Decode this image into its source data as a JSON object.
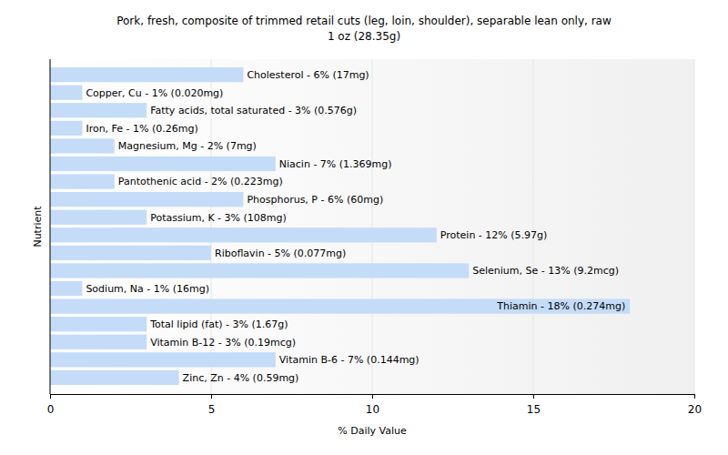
{
  "chart_data": {
    "type": "bar",
    "orientation": "horizontal",
    "title": "Pork, fresh, composite of trimmed retail cuts (leg, loin, shoulder), separable lean only, raw",
    "subtitle": "1 oz (28.35g)",
    "x_label": "% Daily Value",
    "y_label": "Nutrient",
    "categories": [
      "Cholesterol - 6% (17mg)",
      "Copper, Cu - 1% (0.020mg)",
      "Fatty acids, total saturated - 3% (0.576g)",
      "Iron, Fe - 1% (0.26mg)",
      "Magnesium, Mg - 2% (7mg)",
      "Niacin - 7% (1.369mg)",
      "Pantothenic acid - 2% (0.223mg)",
      "Phosphorus, P - 6% (60mg)",
      "Potassium, K - 3% (108mg)",
      "Protein - 12% (5.97g)",
      "Riboflavin - 5% (0.077mg)",
      "Selenium, Se - 13% (9.2mcg)",
      "Sodium, Na - 1% (16mg)",
      "Thiamin - 18% (0.274mg)",
      "Total lipid (fat) - 3% (1.67g)",
      "Vitamin B-12 - 3% (0.19mcg)",
      "Vitamin B-6 - 7% (0.144mg)",
      "Zinc, Zn - 4% (0.59mg)"
    ],
    "values": [
      6,
      1,
      3,
      1,
      2,
      7,
      2,
      6,
      3,
      12,
      5,
      13,
      1,
      18,
      3,
      3,
      7,
      4
    ],
    "color": "#c4dcf8",
    "xlim": [
      0,
      20
    ],
    "xticks": [
      0,
      5,
      10,
      15,
      20
    ],
    "grid": true,
    "tick_labels": "x"
  }
}
